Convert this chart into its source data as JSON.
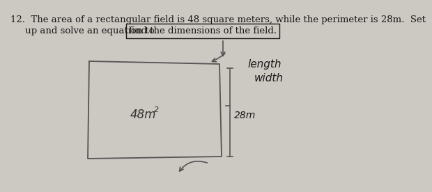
{
  "bg_color": "#ccc8c2",
  "text_color": "#1a1a1a",
  "line_color": "#555555",
  "question_line1": "12.  The area of a rectangular field is 48 square meters, while the perimeter is 28m.  Set",
  "question_line2_pre": "     up and solve an equation to",
  "question_boxed": "find the dimensions of the field.",
  "area_label": "48m",
  "area_superscript": "2",
  "perimeter_label": "28m",
  "length_label": "length",
  "width_label": "width",
  "font_size_q": 9.5,
  "font_size_label": 9.0
}
